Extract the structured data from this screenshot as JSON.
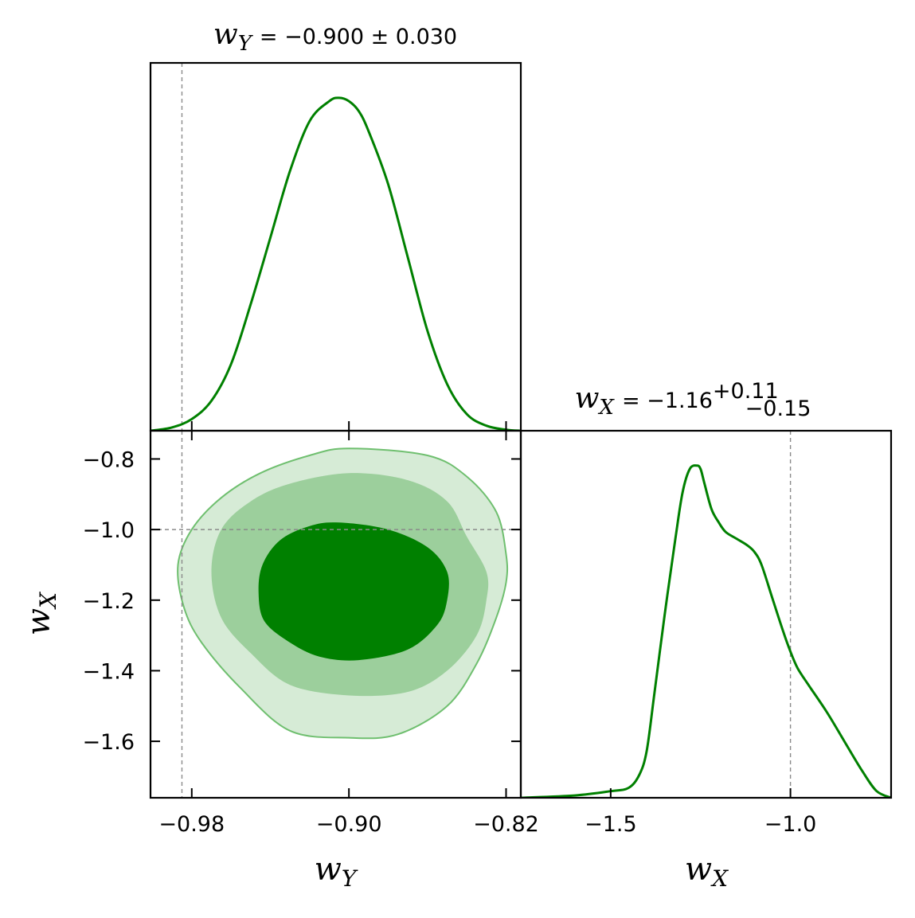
{
  "chart_data": [
    {
      "type": "line",
      "panel": "marginal-wY",
      "title": {
        "var": "w",
        "sub": "Y",
        "value": "= −0.900 ± 0.030"
      },
      "xlabel": "",
      "ylabel": "",
      "xlim": [
        -1.001,
        -0.8125
      ],
      "x_ticks": [
        -0.98,
        -0.9,
        -0.82
      ],
      "reference_x": -0.985,
      "color": "#008000",
      "series": [
        {
          "x": [
            -1.001,
            -0.99,
            -0.98,
            -0.97,
            -0.96,
            -0.95,
            -0.94,
            -0.93,
            -0.92,
            -0.91,
            -0.905,
            -0.9,
            -0.895,
            -0.89,
            -0.88,
            -0.87,
            -0.86,
            -0.85,
            -0.84,
            -0.83,
            -0.82,
            -0.8125
          ],
          "values": [
            0.0,
            0.01,
            0.035,
            0.09,
            0.2,
            0.38,
            0.58,
            0.78,
            0.93,
            0.99,
            1.0,
            0.99,
            0.96,
            0.9,
            0.74,
            0.52,
            0.3,
            0.14,
            0.05,
            0.015,
            0.003,
            0.0
          ]
        }
      ]
    },
    {
      "type": "line",
      "panel": "marginal-wX",
      "title": {
        "var": "w",
        "sub": "X",
        "value": "= −1.16",
        "sup": "+0.11",
        "subscript": "−0.15"
      },
      "xlabel": "",
      "ylabel": "",
      "xlim": [
        -1.75,
        -0.72
      ],
      "x_ticks": [
        -1.5,
        -1.0
      ],
      "x_tick_labels": [
        "−1.5",
        "−1.0"
      ],
      "reference_x": -1.0,
      "color": "#008000",
      "series": [
        {
          "x": [
            -1.75,
            -1.6,
            -1.5,
            -1.45,
            -1.42,
            -1.4,
            -1.38,
            -1.35,
            -1.32,
            -1.3,
            -1.28,
            -1.26,
            -1.25,
            -1.24,
            -1.22,
            -1.2,
            -1.18,
            -1.15,
            -1.12,
            -1.1,
            -1.08,
            -1.05,
            -1.02,
            -1.0,
            -0.98,
            -0.95,
            -0.9,
            -0.85,
            -0.8,
            -0.76,
            -0.72
          ],
          "values": [
            0.0,
            0.007,
            0.02,
            0.03,
            0.07,
            0.14,
            0.3,
            0.55,
            0.78,
            0.92,
            0.99,
            1.0,
            0.99,
            0.95,
            0.87,
            0.83,
            0.8,
            0.78,
            0.76,
            0.74,
            0.7,
            0.6,
            0.5,
            0.44,
            0.39,
            0.34,
            0.26,
            0.17,
            0.08,
            0.02,
            0.0
          ]
        }
      ]
    },
    {
      "type": "contour",
      "panel": "joint-wY-wX",
      "xlabel": {
        "var": "w",
        "sub": "Y"
      },
      "ylabel": {
        "var": "w",
        "sub": "X"
      },
      "xlim": [
        -1.001,
        -0.8125
      ],
      "ylim": [
        -1.76,
        -0.72
      ],
      "x_ticks": [
        -0.98,
        -0.9,
        -0.82
      ],
      "x_tick_labels": [
        "−0.98",
        "−0.90",
        "−0.82"
      ],
      "y_ticks": [
        -0.8,
        -1.0,
        -1.2,
        -1.4,
        -1.6
      ],
      "y_tick_labels": [
        "−0.8",
        "−1.0",
        "−1.2",
        "−1.4",
        "−1.6"
      ],
      "reference_x": -0.985,
      "reference_y": -1.0,
      "levels": [
        {
          "name": "3 sigma",
          "fill": "#d6ebd6",
          "stroke": "#6fbf6f",
          "points": [
            [
              -0.9,
              -0.77
            ],
            [
              -0.86,
              -0.79
            ],
            [
              -0.84,
              -0.85
            ],
            [
              -0.825,
              -0.95
            ],
            [
              -0.82,
              -1.07
            ],
            [
              -0.82,
              -1.15
            ],
            [
              -0.825,
              -1.25
            ],
            [
              -0.835,
              -1.38
            ],
            [
              -0.85,
              -1.5
            ],
            [
              -0.875,
              -1.58
            ],
            [
              -0.9,
              -1.59
            ],
            [
              -0.93,
              -1.57
            ],
            [
              -0.955,
              -1.45
            ],
            [
              -0.975,
              -1.32
            ],
            [
              -0.984,
              -1.22
            ],
            [
              -0.987,
              -1.1
            ],
            [
              -0.98,
              -1.0
            ],
            [
              -0.965,
              -0.91
            ],
            [
              -0.945,
              -0.84
            ],
            [
              -0.92,
              -0.79
            ]
          ]
        },
        {
          "name": "2 sigma",
          "fill": "#9ccf9c",
          "points": [
            [
              -0.9,
              -0.84
            ],
            [
              -0.87,
              -0.86
            ],
            [
              -0.85,
              -0.92
            ],
            [
              -0.84,
              -1.02
            ],
            [
              -0.83,
              -1.12
            ],
            [
              -0.83,
              -1.2
            ],
            [
              -0.835,
              -1.3
            ],
            [
              -0.85,
              -1.4
            ],
            [
              -0.87,
              -1.46
            ],
            [
              -0.9,
              -1.47
            ],
            [
              -0.93,
              -1.44
            ],
            [
              -0.95,
              -1.35
            ],
            [
              -0.965,
              -1.25
            ],
            [
              -0.97,
              -1.12
            ],
            [
              -0.965,
              -1.0
            ],
            [
              -0.95,
              -0.92
            ],
            [
              -0.93,
              -0.87
            ]
          ]
        },
        {
          "name": "1 sigma",
          "fill": "#008000",
          "points": [
            [
              -0.905,
              -0.98
            ],
            [
              -0.88,
              -1.0
            ],
            [
              -0.86,
              -1.05
            ],
            [
              -0.85,
              -1.12
            ],
            [
              -0.85,
              -1.2
            ],
            [
              -0.855,
              -1.27
            ],
            [
              -0.87,
              -1.34
            ],
            [
              -0.895,
              -1.37
            ],
            [
              -0.915,
              -1.36
            ],
            [
              -0.93,
              -1.32
            ],
            [
              -0.943,
              -1.26
            ],
            [
              -0.946,
              -1.18
            ],
            [
              -0.944,
              -1.1
            ],
            [
              -0.935,
              -1.03
            ],
            [
              -0.92,
              -0.99
            ]
          ]
        }
      ]
    }
  ]
}
